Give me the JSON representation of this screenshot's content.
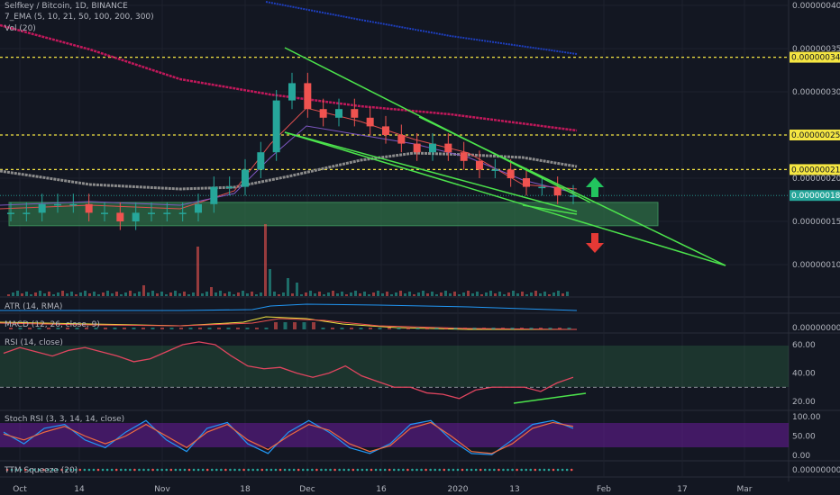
{
  "header": {
    "title": "Selfkey / Bitcoin, 1D, BINANCE",
    "ema": "7_EMA (5, 10, 21, 50, 100, 200, 300)",
    "vol": "Vol (20)"
  },
  "indicators": {
    "atr": "ATR (14, RMA)",
    "macd": "MACD (12, 26, close, 9)",
    "rsi": "RSI (14, close)",
    "stoch": "Stoch RSI (3, 3, 14, 14, close)",
    "ttm": "TTM Squeeze (20)"
  },
  "colors": {
    "background": "#131722",
    "up": "#26a69a",
    "down": "#ef5350",
    "level_line": "#f5e642",
    "pattern": "#4ce34c",
    "ema_red": "#c2185b",
    "ema_gray": "#8c8c8c",
    "ema_blue": "#1e3fbf",
    "rsi_line": "#e0455f",
    "stoch_k": "#2196f3",
    "stoch_d": "#ef6c40"
  },
  "chart_data": {
    "type": "candlestick",
    "title": "Selfkey / Bitcoin, 1D, BINANCE",
    "x_ticks": [
      "Oct",
      "14",
      "Nov",
      "18",
      "Dec",
      "16",
      "2020",
      "13",
      "Feb",
      "17",
      "Mar"
    ],
    "price_axis_ticks": [
      "0.00000040",
      "0.00000035",
      "0.00000030",
      "0.00000025",
      "0.00000020",
      "0.00000015",
      "0.00000010"
    ],
    "price_ylim": [
      7e-08,
      4.1e-07
    ],
    "horizontal_levels": [
      {
        "label": "0.00000034",
        "value": 3.4e-07,
        "color": "#f5e642"
      },
      {
        "label": "0.00000025",
        "value": 2.5e-07,
        "color": "#f5e642"
      },
      {
        "label": "0.00000021",
        "value": 2.1e-07,
        "color": "#f5e642"
      }
    ],
    "current_price_label": "0.00000018",
    "support_zone": [
      1.45e-07,
      1.72e-07
    ],
    "close_series": [
      1.6e-07,
      1.6e-07,
      1.7e-07,
      1.7e-07,
      1.7e-07,
      1.6e-07,
      1.6e-07,
      1.5e-07,
      1.6e-07,
      1.6e-07,
      1.6e-07,
      1.6e-07,
      1.7e-07,
      1.9e-07,
      1.9e-07,
      2.1e-07,
      2.3e-07,
      2.9e-07,
      3.1e-07,
      2.8e-07,
      2.7e-07,
      2.8e-07,
      2.7e-07,
      2.6e-07,
      2.5e-07,
      2.4e-07,
      2.3e-07,
      2.4e-07,
      2.3e-07,
      2.2e-07,
      2.1e-07,
      2.1e-07,
      2e-07,
      1.9e-07,
      1.9e-07,
      1.8e-07,
      1.8e-07
    ],
    "rsi_axis_ticks": [
      "60.00",
      "40.00",
      "20.00"
    ],
    "rsi_values": [
      54,
      58,
      55,
      52,
      56,
      58,
      55,
      52,
      48,
      50,
      55,
      60,
      62,
      60,
      52,
      45,
      43,
      44,
      40,
      37,
      40,
      45,
      38,
      34,
      30,
      30,
      26,
      25,
      22,
      28,
      30,
      30,
      30,
      27,
      33,
      37
    ],
    "stoch_axis_ticks": [
      "100.00",
      "50.00",
      "0.00"
    ],
    "stoch_k": [
      60,
      30,
      70,
      80,
      40,
      20,
      60,
      90,
      40,
      10,
      70,
      85,
      30,
      5,
      60,
      90,
      60,
      20,
      5,
      30,
      80,
      90,
      40,
      5,
      2,
      40,
      80,
      90,
      70
    ],
    "stoch_d": [
      55,
      40,
      60,
      75,
      50,
      30,
      50,
      80,
      50,
      20,
      60,
      80,
      40,
      15,
      50,
      80,
      65,
      30,
      10,
      25,
      70,
      85,
      50,
      10,
      5,
      30,
      70,
      85,
      75
    ],
    "macd_axis_ticks": [
      "0.00000000"
    ],
    "ttm_axis_ticks": [
      "0.00000000"
    ]
  }
}
